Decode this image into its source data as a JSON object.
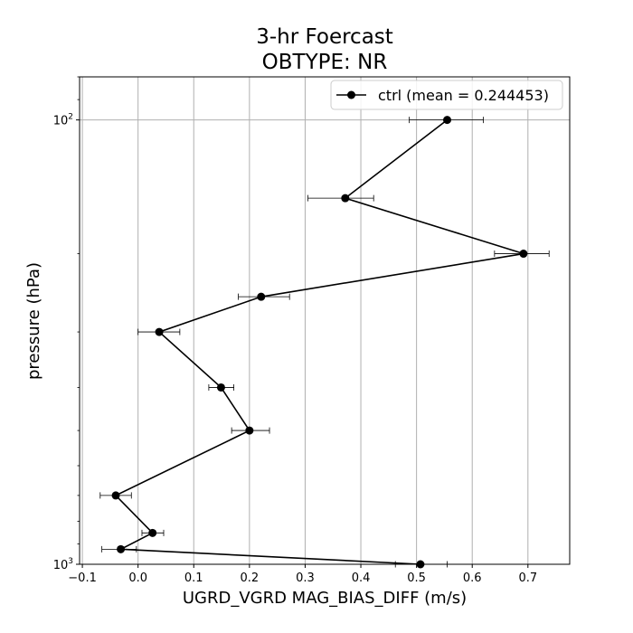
{
  "chart_data": {
    "type": "line",
    "title": "3-hr Foercast",
    "subtitle": "OBTYPE: NR",
    "xlabel": "UGRD_VGRD MAG_BIAS_DIFF (m/s)",
    "ylabel": "pressure (hPa)",
    "xlim": [
      -0.105,
      0.775
    ],
    "ylim": [
      1000,
      80
    ],
    "yscale": "log",
    "grid": "x",
    "legend_position": "upper right",
    "x_ticks": [
      -0.1,
      0.0,
      0.1,
      0.2,
      0.3,
      0.4,
      0.5,
      0.6,
      0.7
    ],
    "x_tick_labels": [
      "−0.1",
      "0.0",
      "0.1",
      "0.2",
      "0.3",
      "0.4",
      "0.5",
      "0.6",
      "0.7"
    ],
    "y_ticks": [
      {
        "value": 100,
        "base": "10",
        "exp": "2"
      },
      {
        "value": 1000,
        "base": "10",
        "exp": "3"
      }
    ],
    "y_minor_ticks": [
      200,
      300,
      400,
      500,
      600,
      700,
      800,
      900
    ],
    "series": [
      {
        "name": "ctrl (mean = 0.244453)",
        "color": "#000000",
        "marker": "circle",
        "points": [
          {
            "pressure": 100,
            "value": 0.555,
            "err_low": 0.487,
            "err_high": 0.62
          },
          {
            "pressure": 150,
            "value": 0.372,
            "err_low": 0.305,
            "err_high": 0.423
          },
          {
            "pressure": 200,
            "value": 0.692,
            "err_low": 0.64,
            "err_high": 0.738
          },
          {
            "pressure": 250,
            "value": 0.221,
            "err_low": 0.18,
            "err_high": 0.272
          },
          {
            "pressure": 300,
            "value": 0.038,
            "err_low": 0.0,
            "err_high": 0.075
          },
          {
            "pressure": 400,
            "value": 0.149,
            "err_low": 0.127,
            "err_high": 0.172
          },
          {
            "pressure": 500,
            "value": 0.2,
            "err_low": 0.168,
            "err_high": 0.236
          },
          {
            "pressure": 700,
            "value": -0.04,
            "err_low": -0.068,
            "err_high": -0.012
          },
          {
            "pressure": 850,
            "value": 0.026,
            "err_low": 0.007,
            "err_high": 0.046
          },
          {
            "pressure": 925,
            "value": -0.031,
            "err_low": -0.065,
            "err_high": -0.003
          },
          {
            "pressure": 1000,
            "value": 0.507,
            "err_low": 0.462,
            "err_high": 0.555
          }
        ]
      }
    ]
  }
}
